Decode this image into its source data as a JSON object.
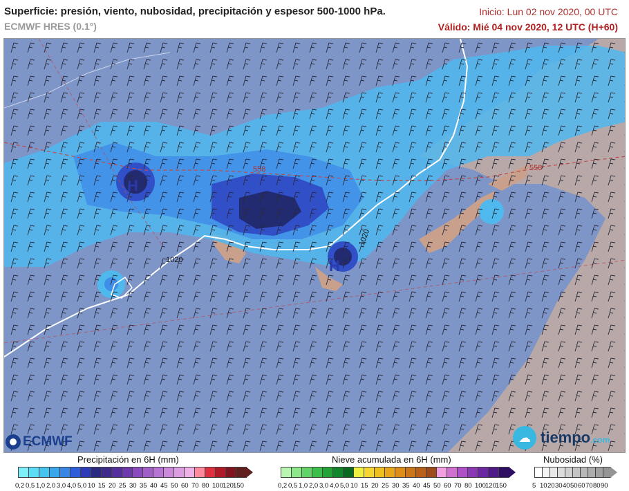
{
  "header": {
    "title": "Superficie: presión, viento, nubosidad, precipitación y espesor 500-1000 hPa.",
    "model": "ECMWF HRES (0.1°)",
    "init": "Inicio: Lun 02 nov 2020, 00 UTC",
    "valid": "Válido: Mié 04 nov 2020, 12 UTC (H+60)"
  },
  "map": {
    "labels": {
      "isobar_1020_a": "1020",
      "isobar_1020_b": "1020",
      "thickness_558_a": "558",
      "thickness_558_b": "558"
    },
    "highs": [
      "H",
      "H"
    ],
    "colors": {
      "ocean": "#7e95c8",
      "land": "#b8a8a8",
      "sea_cloud": "#8aa3d6"
    }
  },
  "logos": {
    "left": "ECMWF",
    "right_main": "tiempo",
    "right_suffix": ".com"
  },
  "legend": {
    "precip": {
      "title": "Precipitación en 6H (mm)",
      "labels": [
        "0,2",
        "0,5",
        "1,0",
        "2,0",
        "3,0",
        "4,0",
        "5,0",
        "10",
        "15",
        "20",
        "25",
        "30",
        "35",
        "40",
        "45",
        "50",
        "60",
        "70",
        "80",
        "100",
        "120",
        "150"
      ],
      "colors": [
        "#7ff0fa",
        "#5ddcf5",
        "#45c4f0",
        "#3aa6ec",
        "#3785e4",
        "#2f5cd8",
        "#2c3bb8",
        "#2a2a80",
        "#3d2a8a",
        "#55309c",
        "#6f3aae",
        "#8a4bbd",
        "#a25ec8",
        "#b874d2",
        "#cc88da",
        "#dc9ee0",
        "#f0b2e6",
        "#ff8aa0",
        "#e03040",
        "#b01a28",
        "#801520",
        "#602020"
      ]
    },
    "snow": {
      "title": "Nieve acumulada en 6H (mm)",
      "labels": [
        "0,2",
        "0,5",
        "1,0",
        "2,0",
        "3,0",
        "4,0",
        "5,0",
        "10",
        "15",
        "20",
        "25",
        "30",
        "35",
        "40",
        "45",
        "50",
        "60",
        "70",
        "80",
        "100",
        "120",
        "150"
      ],
      "colors": [
        "#b8f5b0",
        "#8ee78a",
        "#62d467",
        "#3cbf4a",
        "#22a335",
        "#12862a",
        "#0a6a20",
        "#f0f040",
        "#f5d730",
        "#f0bf20",
        "#eaa51a",
        "#dd8d18",
        "#cc7418",
        "#b85f1a",
        "#9e4a1a",
        "#f0a0e0",
        "#d070d0",
        "#b050c8",
        "#8c38b4",
        "#6c28a0",
        "#4e1a88",
        "#2e0e60"
      ]
    },
    "cloud": {
      "title": "Nubosidad (%)",
      "labels": [
        "5",
        "10",
        "20",
        "30",
        "40",
        "50",
        "60",
        "70",
        "80",
        "90"
      ],
      "colors": [
        "#ffffff",
        "#f4f4f4",
        "#e8e8e8",
        "#dcdcdc",
        "#d0d0d0",
        "#c4c4c4",
        "#b8b8b8",
        "#acacac",
        "#a0a0a0",
        "#949494"
      ]
    }
  }
}
